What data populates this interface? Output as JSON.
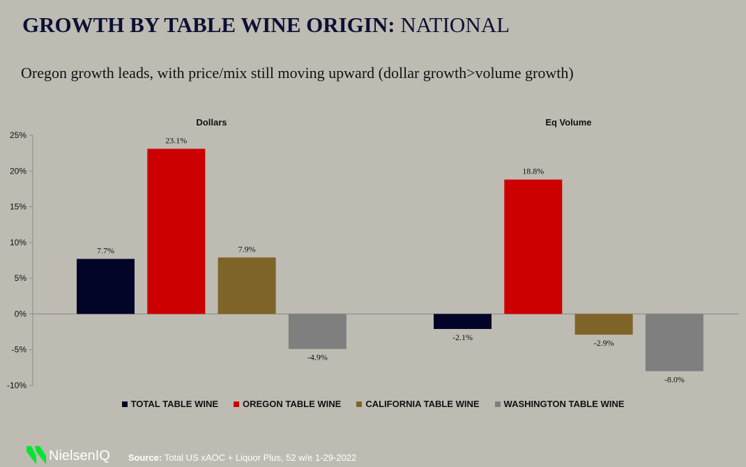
{
  "header": {
    "title_bold": "GROWTH BY TABLE WINE ORIGIN:",
    "title_rest": " NATIONAL",
    "subtitle": "Oregon growth leads, with price/mix still moving upward (dollar growth>volume growth)"
  },
  "chart_data": {
    "type": "bar",
    "groups": [
      "Dollars",
      "Eq Volume"
    ],
    "series": [
      {
        "name": "TOTAL TABLE WINE",
        "color": "#020428",
        "values": [
          7.7,
          -2.1
        ],
        "labels": [
          "7.7%",
          "-2.1%"
        ]
      },
      {
        "name": "OREGON TABLE WINE",
        "color": "#cc0000",
        "values": [
          23.1,
          18.8
        ],
        "labels": [
          "23.1%",
          "18.8%"
        ]
      },
      {
        "name": "CALIFORNIA TABLE WINE",
        "color": "#7f6429",
        "values": [
          7.9,
          -2.9
        ],
        "labels": [
          "7.9%",
          "-2.9%"
        ]
      },
      {
        "name": "WASHINGTON TABLE WINE",
        "color": "#7f7f7f",
        "values": [
          -4.9,
          -8.0
        ],
        "labels": [
          "-4.9%",
          "-8.0%"
        ]
      }
    ],
    "ylim": [
      -10,
      25
    ],
    "yticks": [
      "25%",
      "20%",
      "15%",
      "10%",
      "5%",
      "0%",
      "-5%",
      "-10%"
    ],
    "legend": "bottom",
    "grid": false
  },
  "footer": {
    "brand": "NielsenIQ",
    "source_label": "Source:",
    "source_text": " Total US xAOC + Liquor Plus, 52 w/e 1-29-2022"
  }
}
